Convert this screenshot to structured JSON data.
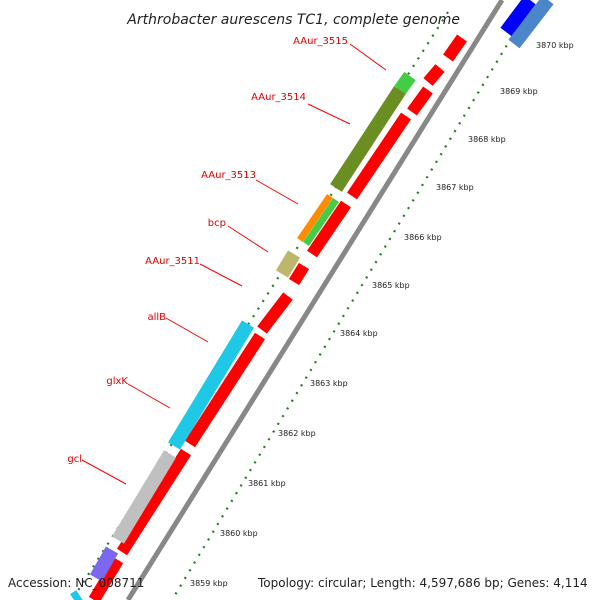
{
  "title": "Arthrobacter aurescens TC1, complete genome",
  "footer": {
    "accession": "Accession: NC_008711",
    "topology": "Topology: circular; Length: 4,597,686 bp; Genes: 4,114"
  },
  "colors": {
    "backbone": "#7f7f7f",
    "cds_forward": "#ff0000",
    "tick_minor": "#1f7f1f",
    "label_line": "#ff0000"
  },
  "ticks": [
    {
      "label": "3859 kbp"
    },
    {
      "label": "3860 kbp"
    },
    {
      "label": "3861 kbp"
    },
    {
      "label": "3862 kbp"
    },
    {
      "label": "3863 kbp"
    },
    {
      "label": "3864 kbp"
    },
    {
      "label": "3865 kbp"
    },
    {
      "label": "3866 kbp"
    },
    {
      "label": "3867 kbp"
    },
    {
      "label": "3868 kbp"
    },
    {
      "label": "3869 kbp"
    },
    {
      "label": "3870 kbp"
    }
  ],
  "genes": [
    {
      "name": "AAur_3515",
      "color": "#44cc44"
    },
    {
      "name": "AAur_3514",
      "color": "#6b8e23"
    },
    {
      "name": "AAur_3513",
      "color": "#ff8c00"
    },
    {
      "name": "bcp",
      "color": "#bdb76b"
    },
    {
      "name": "AAur_3511",
      "color": "#ffffff"
    },
    {
      "name": "allB",
      "color": "#20c8e8"
    },
    {
      "name": "glxK",
      "color": "#20c8e8"
    },
    {
      "name": "gcl",
      "color": "#c0c0c0"
    }
  ]
}
